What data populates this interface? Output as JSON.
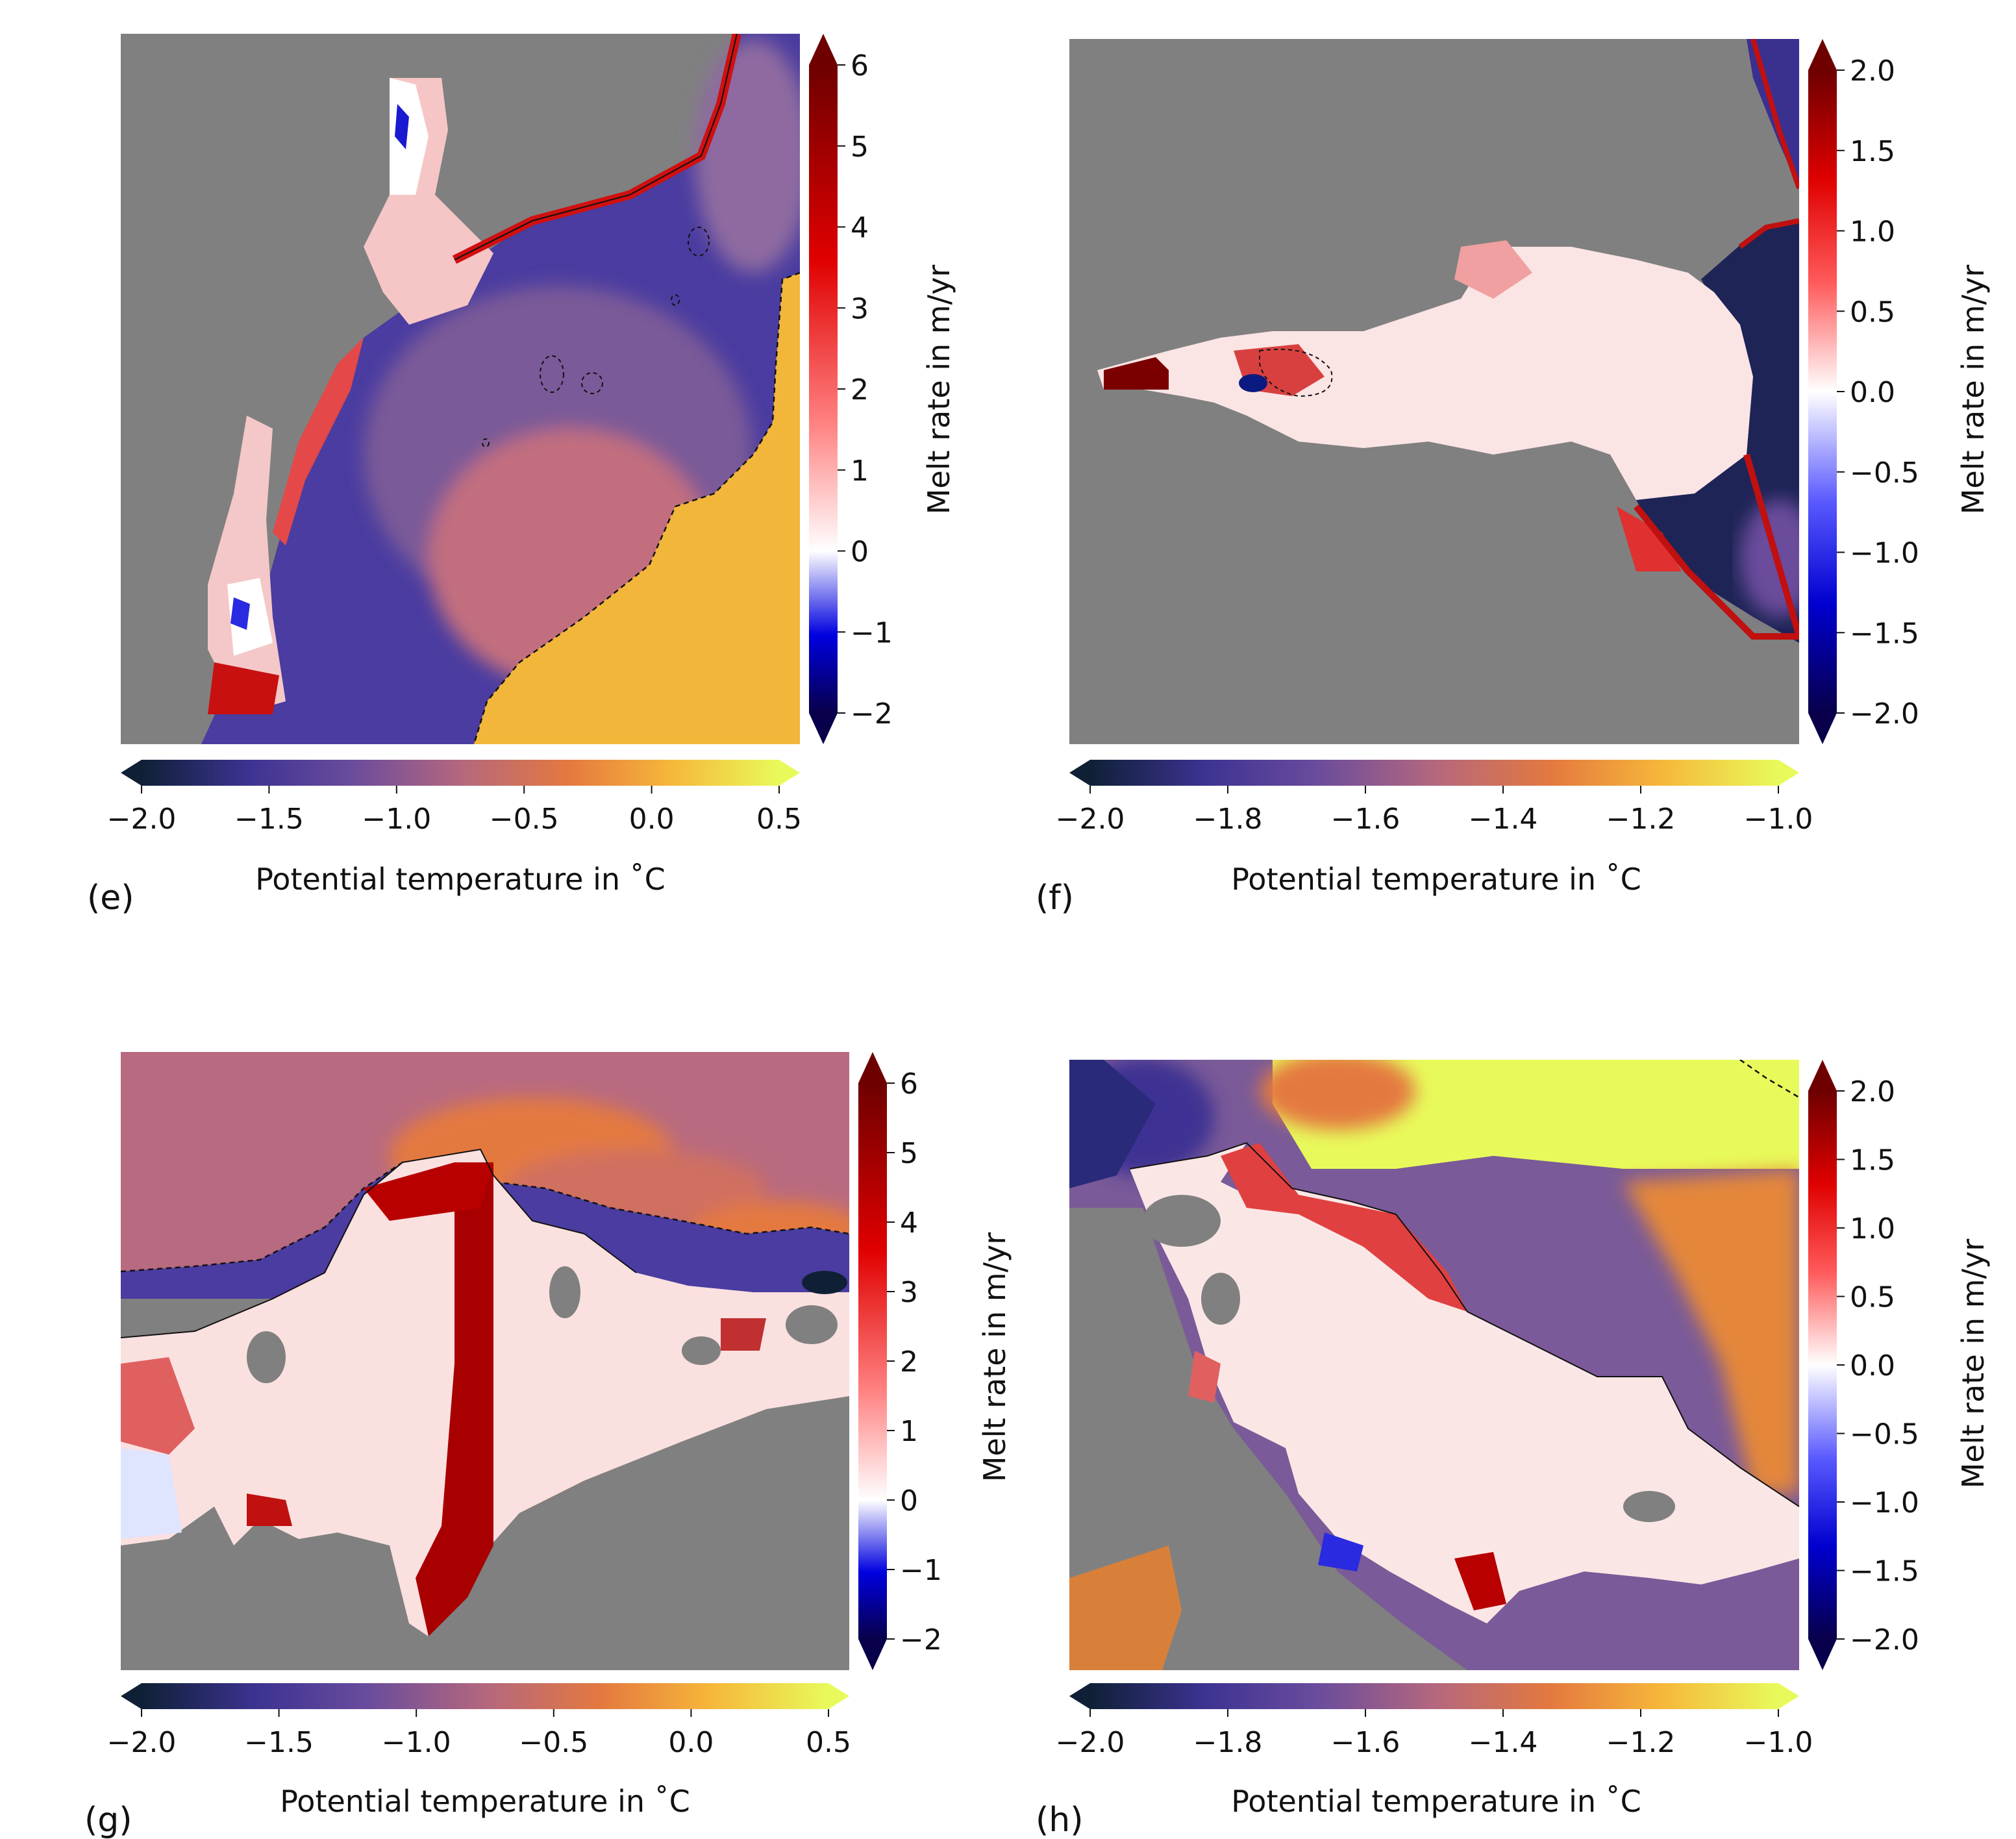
{
  "figure": {
    "panels": [
      {
        "label": "(e)",
        "melt_colorbar": {
          "label": "Melt rate in m/yr",
          "ticks": [
            "−2",
            "−1",
            "0",
            "1",
            "2",
            "3",
            "4",
            "5",
            "6"
          ],
          "range": [
            -2,
            6
          ]
        },
        "temp_colorbar": {
          "label": "Potential temperature in ˚C",
          "ticks": [
            "−2.0",
            "−1.5",
            "−1.0",
            "−0.5",
            "0.0",
            "0.5"
          ],
          "range": [
            -2.0,
            0.5
          ]
        }
      },
      {
        "label": "(f)",
        "melt_colorbar": {
          "label": "Melt rate in m/yr",
          "ticks": [
            "−2.0",
            "−1.5",
            "−1.0",
            "−0.5",
            "0.0",
            "0.5",
            "1.0",
            "1.5",
            "2.0"
          ],
          "range": [
            -2.0,
            2.0
          ]
        },
        "temp_colorbar": {
          "label": "Potential temperature in ˚C",
          "ticks": [
            "−2.0",
            "−1.8",
            "−1.6",
            "−1.4",
            "−1.2",
            "−1.0"
          ],
          "range": [
            -2.0,
            -1.0
          ]
        }
      },
      {
        "label": "(g)",
        "melt_colorbar": {
          "label": "Melt rate in m/yr",
          "ticks": [
            "−2",
            "−1",
            "0",
            "1",
            "2",
            "3",
            "4",
            "5",
            "6"
          ],
          "range": [
            -2,
            6
          ]
        },
        "temp_colorbar": {
          "label": "Potential temperature in ˚C",
          "ticks": [
            "−2.0",
            "−1.5",
            "−1.0",
            "−0.5",
            "0.0",
            "0.5"
          ],
          "range": [
            -2.0,
            0.5
          ]
        }
      },
      {
        "label": "(h)",
        "melt_colorbar": {
          "label": "Melt rate in m/yr",
          "ticks": [
            "−2.0",
            "−1.5",
            "−1.0",
            "−0.5",
            "0.0",
            "0.5",
            "1.0",
            "1.5",
            "2.0"
          ],
          "range": [
            -2.0,
            2.0
          ]
        },
        "temp_colorbar": {
          "label": "Potential temperature in ˚C",
          "ticks": [
            "−2.0",
            "−1.8",
            "−1.6",
            "−1.4",
            "−1.2",
            "−1.0"
          ],
          "range": [
            -2.0,
            -1.0
          ]
        }
      }
    ]
  },
  "colors": {
    "land_mask": "#808080",
    "contour_line": "#111111",
    "melt_cmap": [
      "#08004a",
      "#0000d0",
      "#5a5aff",
      "#ffffff",
      "#ff5a5a",
      "#e00000",
      "#6e0000"
    ],
    "temp_cmap": [
      "#0f2036",
      "#3d3393",
      "#6a4c9c",
      "#b4677e",
      "#e4793f",
      "#f6b73a",
      "#e8fa5b"
    ]
  },
  "chart_data": [
    {
      "type": "heatmap",
      "panel": "(e)",
      "colorbars": [
        {
          "quantity": "Melt rate in m/yr",
          "range": [
            -2,
            6
          ]
        },
        {
          "quantity": "Potential temperature in ˚C",
          "range": [
            -2.0,
            0.5
          ]
        }
      ]
    },
    {
      "type": "heatmap",
      "panel": "(f)",
      "colorbars": [
        {
          "quantity": "Melt rate in m/yr",
          "range": [
            -2.0,
            2.0
          ]
        },
        {
          "quantity": "Potential temperature in ˚C",
          "range": [
            -2.0,
            -1.0
          ]
        }
      ]
    },
    {
      "type": "heatmap",
      "panel": "(g)",
      "colorbars": [
        {
          "quantity": "Melt rate in m/yr",
          "range": [
            -2,
            6
          ]
        },
        {
          "quantity": "Potential temperature in ˚C",
          "range": [
            -2.0,
            0.5
          ]
        }
      ]
    },
    {
      "type": "heatmap",
      "panel": "(h)",
      "colorbars": [
        {
          "quantity": "Melt rate in m/yr",
          "range": [
            -2.0,
            2.0
          ]
        },
        {
          "quantity": "Potential temperature in ˚C",
          "range": [
            -2.0,
            -1.0
          ]
        }
      ]
    }
  ]
}
